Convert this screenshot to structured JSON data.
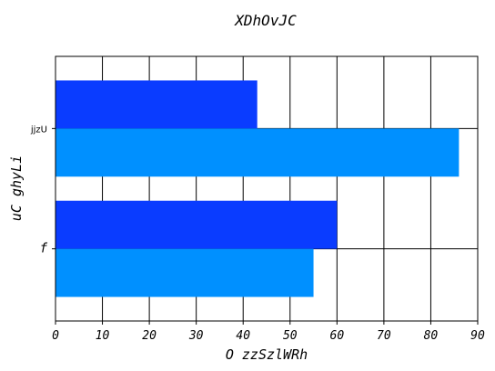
{
  "chart_data": {
    "type": "bar",
    "orientation": "horizontal",
    "title": "XDhOvJC",
    "xlabel": "O zzSzlWRh",
    "ylabel": "uC ghyLi",
    "categories": [
      "f",
      "jjzU"
    ],
    "series": [
      {
        "values": [
          60,
          43
        ],
        "color": "#0a3cff"
      },
      {
        "values": [
          55,
          86
        ],
        "color": "#0090ff"
      }
    ],
    "xlim": [
      0,
      90
    ],
    "xticks": [
      0,
      10,
      20,
      30,
      40,
      50,
      60,
      70,
      80,
      90
    ],
    "grid": true,
    "legend": false
  }
}
